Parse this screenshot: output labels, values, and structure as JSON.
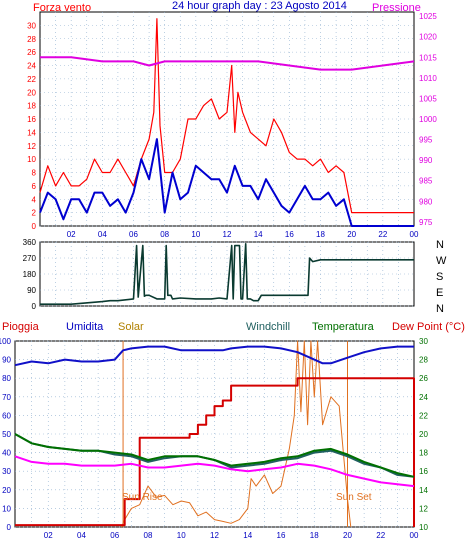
{
  "colors": {
    "wind_speed": "#ff0000",
    "wind_gust": "#ff0000",
    "pressure": "#e000e0",
    "wind_dir": "#0a3a30",
    "rain": "#d40000",
    "humidity": "#1010c8",
    "solar": "#e07020",
    "windchill": "#206060",
    "temperature": "#007000",
    "dewpoint": "#ff00ff",
    "blue_text": "#0000c0",
    "grid": "#90b0d0"
  },
  "chart_data": [
    {
      "type": "line",
      "title": "24 hour graph day : 23 Agosto 2014",
      "left_label": "Forza vento",
      "right_label": "Pressione",
      "x_ticks": [
        "02",
        "04",
        "06",
        "08",
        "10",
        "12",
        "14",
        "16",
        "18",
        "20",
        "22",
        "00"
      ],
      "y_left_ticks": [
        "0",
        "2",
        "4",
        "6",
        "8",
        "10",
        "12",
        "14",
        "16",
        "18",
        "20",
        "22",
        "24",
        "26",
        "28",
        "30"
      ],
      "y_left_range": [
        0,
        32
      ],
      "y_right_ticks": [
        "975",
        "980",
        "985",
        "990",
        "995",
        "1000",
        "1005",
        "1010",
        "1015",
        "1020",
        "1025"
      ],
      "y_right_range": [
        974,
        1026
      ],
      "x_range_hours": [
        0,
        24
      ],
      "series": [
        {
          "key": "gust",
          "x": [
            0,
            0.5,
            1,
            1.5,
            2,
            2.5,
            3,
            3.5,
            4,
            4.5,
            5,
            5.5,
            6,
            6.5,
            7,
            7.3,
            7.5,
            7.7,
            8,
            8.5,
            9,
            9.5,
            10,
            10.5,
            11,
            11.5,
            12,
            12.3,
            12.5,
            12.7,
            13,
            13.5,
            14,
            14.5,
            15,
            15.5,
            16,
            16.5,
            17,
            17.5,
            18,
            18.5,
            19,
            19.5,
            20,
            20.5,
            21,
            21.5,
            22,
            22.5,
            23,
            23.5,
            24
          ],
          "values": [
            5,
            9,
            6,
            8,
            6,
            6,
            7,
            10,
            8,
            8,
            10,
            8,
            6,
            10,
            13,
            17,
            31,
            15,
            8,
            8,
            10,
            16,
            16,
            18,
            19,
            16,
            17,
            24,
            14,
            20,
            17,
            14,
            13,
            12,
            16,
            14,
            11,
            10,
            10,
            9,
            10,
            8,
            9,
            8,
            2,
            2,
            2,
            2,
            2,
            2,
            2,
            2,
            2
          ]
        },
        {
          "key": "speed",
          "x": [
            0,
            0.5,
            1,
            1.5,
            2,
            2.5,
            3,
            3.5,
            4,
            4.5,
            5,
            5.5,
            6,
            6.5,
            7,
            7.5,
            8,
            8.5,
            9,
            9.5,
            10,
            10.5,
            11,
            11.5,
            12,
            12.5,
            13,
            13.5,
            14,
            14.5,
            15,
            15.5,
            16,
            16.5,
            17,
            17.5,
            18,
            18.5,
            19,
            19.5,
            20,
            20.5,
            21,
            22,
            23,
            24
          ],
          "values": [
            2,
            5,
            4,
            1,
            4,
            4,
            2,
            5,
            5,
            3,
            4,
            2,
            5,
            10,
            7,
            13,
            2,
            8,
            4,
            5,
            9,
            8,
            7,
            7,
            5,
            9,
            6,
            6,
            4,
            7,
            5,
            3,
            2,
            4,
            6,
            4,
            4,
            5,
            3,
            4,
            0,
            0,
            0,
            0,
            0,
            0
          ]
        },
        {
          "key": "pressure",
          "axis": "right",
          "x": [
            0,
            2,
            4,
            6,
            7,
            8,
            10,
            12,
            14,
            16,
            18,
            20,
            22,
            24
          ],
          "values": [
            1015,
            1015,
            1014,
            1014,
            1013,
            1014,
            1014,
            1014,
            1014,
            1013,
            1012,
            1012,
            1013,
            1014
          ]
        }
      ]
    },
    {
      "type": "line",
      "right_labels": [
        "N",
        "W",
        "S",
        "E",
        "N"
      ],
      "y_left_ticks": [
        "0",
        "90",
        "180",
        "270",
        "360"
      ],
      "y_range": [
        0,
        360
      ],
      "x_range_hours": [
        0,
        24
      ],
      "series": [
        {
          "key": "direction",
          "x": [
            0,
            2,
            4,
            4.5,
            5,
            6,
            6.2,
            6.3,
            6.6,
            6.7,
            6.8,
            7,
            7.5,
            8,
            8.1,
            8.2,
            8.4,
            8.5,
            9,
            10,
            11,
            11.5,
            12,
            12.3,
            12.4,
            12.5,
            12.8,
            12.9,
            13,
            13.2,
            13.3,
            13.5,
            13.7,
            14,
            14.2,
            14.5,
            15,
            16,
            17,
            17.2,
            17.3,
            17.5,
            18,
            20,
            24
          ],
          "values": [
            10,
            10,
            25,
            30,
            30,
            40,
            340,
            50,
            340,
            55,
            60,
            60,
            40,
            40,
            340,
            60,
            60,
            40,
            45,
            40,
            40,
            45,
            40,
            340,
            40,
            340,
            340,
            40,
            40,
            350,
            40,
            40,
            30,
            30,
            60,
            60,
            60,
            60,
            60,
            60,
            270,
            250,
            260,
            260,
            260
          ]
        }
      ]
    },
    {
      "type": "line",
      "labels": {
        "rain": "Pioggia",
        "humidity": "Umidita",
        "solar": "Solar",
        "windchill": "Windchill",
        "temperature": "Temperatura",
        "dewpoint": "Dew Point (°C)",
        "sunrise": "Sun Rise",
        "sunset": "Sun Set"
      },
      "y_left_ticks": [
        "0",
        "10",
        "20",
        "30",
        "40",
        "50",
        "60",
        "70",
        "80",
        "90",
        "100"
      ],
      "y_left_range": [
        0,
        100
      ],
      "y_right_ticks": [
        "10",
        "12",
        "14",
        "16",
        "18",
        "20",
        "22",
        "24",
        "26",
        "28",
        "30"
      ],
      "y_right_range": [
        10,
        30
      ],
      "x_ticks": [
        "02",
        "04",
        "06",
        "08",
        "10",
        "12",
        "14",
        "16",
        "18",
        "20",
        "22",
        "00"
      ],
      "x_range_hours": [
        0,
        24
      ],
      "sunrise_hour": 6.5,
      "sunset_hour": 20,
      "series": [
        {
          "key": "humidity",
          "x": [
            0,
            1,
            2,
            3,
            4,
            5,
            6,
            6.5,
            7,
            8,
            9,
            10,
            11,
            12,
            12.5,
            13,
            14,
            15,
            16,
            17,
            18,
            18.5,
            19,
            20,
            21,
            22,
            23,
            24
          ],
          "values": [
            87,
            89,
            88,
            90,
            89,
            89,
            90,
            95,
            96,
            97,
            97,
            95,
            95,
            95,
            95,
            96,
            97,
            97,
            96,
            94,
            90,
            88,
            88,
            91,
            94,
            96,
            97,
            97
          ]
        },
        {
          "key": "rain",
          "x": [
            0,
            6.6,
            6.6,
            7.5,
            7.5,
            10.5,
            10.5,
            11,
            11,
            11.5,
            11.5,
            12,
            12,
            12.5,
            12.5,
            13,
            13,
            17,
            17,
            24,
            24
          ],
          "values": [
            1,
            1,
            15,
            15,
            48,
            48,
            50,
            50,
            55,
            55,
            60,
            60,
            65,
            65,
            68,
            68,
            76,
            76,
            80,
            80,
            0
          ]
        },
        {
          "key": "solar",
          "x": [
            6.4,
            6.6,
            7,
            7.5,
            8,
            8.5,
            9,
            9.5,
            10,
            10.5,
            11,
            11.5,
            12,
            12.5,
            13,
            13.5,
            14,
            14.2,
            14.5,
            15,
            15.5,
            16,
            16.5,
            16.8,
            17,
            17.2,
            17.4,
            17.6,
            17.8,
            18,
            18.2,
            18.5,
            19,
            19.5,
            20,
            20.2
          ],
          "values": [
            0,
            4,
            10,
            12,
            22,
            16,
            17,
            12,
            14,
            13,
            6,
            8,
            4,
            3,
            2,
            4,
            10,
            26,
            22,
            28,
            18,
            22,
            42,
            60,
            100,
            62,
            100,
            55,
            100,
            70,
            100,
            55,
            70,
            65,
            15,
            0
          ]
        },
        {
          "key": "windchill",
          "x": [
            0,
            1,
            2,
            3,
            4,
            5,
            6,
            7,
            8,
            9,
            10,
            11,
            12,
            13,
            14,
            15,
            16,
            17,
            18,
            19,
            20,
            21,
            22,
            23,
            24
          ],
          "values": [
            20,
            19,
            18.6,
            18.4,
            18.2,
            18.2,
            17.8,
            17.6,
            17,
            17.4,
            17.6,
            17.6,
            17.2,
            16.4,
            16.6,
            16.8,
            17.2,
            17.4,
            18,
            18.2,
            17.6,
            16.8,
            16.4,
            15.6,
            15.4
          ]
        },
        {
          "key": "temperature",
          "x": [
            0,
            1,
            2,
            3,
            4,
            5,
            6,
            7,
            8,
            9,
            10,
            11,
            12,
            13,
            14,
            15,
            16,
            17,
            18,
            19,
            20,
            21,
            22,
            23,
            24
          ],
          "values": [
            20,
            19,
            18.6,
            18.4,
            18.2,
            18.2,
            18,
            17.8,
            17.2,
            17.6,
            17.6,
            17.6,
            17.2,
            16.6,
            16.8,
            17,
            17.4,
            17.6,
            18.2,
            18.4,
            17.8,
            17,
            16.4,
            15.8,
            15.4
          ]
        },
        {
          "key": "dewpoint",
          "x": [
            0,
            1,
            2,
            3,
            4,
            5,
            6,
            7,
            8,
            9,
            10,
            11,
            12,
            13,
            14,
            15,
            16,
            17,
            18,
            19,
            20,
            21,
            22,
            23,
            24
          ],
          "values": [
            17.6,
            17,
            16.8,
            16.8,
            16.6,
            16.6,
            16.6,
            16.8,
            16.4,
            16.4,
            16.6,
            16.8,
            16.6,
            16.2,
            16,
            16.2,
            16.4,
            16.8,
            16.6,
            16.2,
            15.6,
            15.2,
            14.8,
            14.6,
            14.4
          ]
        }
      ]
    }
  ]
}
